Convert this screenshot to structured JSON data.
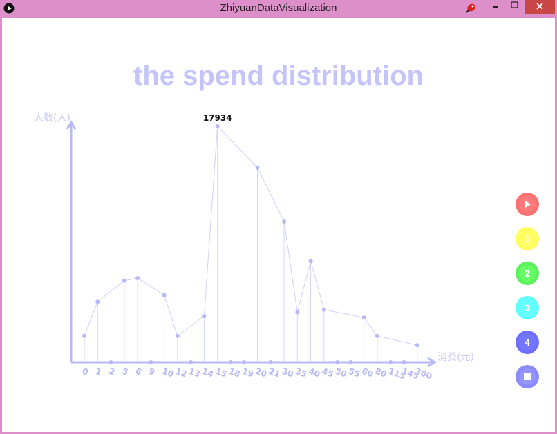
{
  "window": {
    "title": "ZhiyuanDataVisualization",
    "frame_color": "#dc8fc8",
    "close_color": "#c84646"
  },
  "chart_data": {
    "type": "line",
    "title": "the spend distribution",
    "xlabel": "消费(元)",
    "ylabel": "人数(人)",
    "categories": [
      "0",
      "1",
      "2",
      "5",
      "6",
      "9",
      "10",
      "12",
      "13",
      "14",
      "15",
      "18",
      "19",
      "20",
      "21",
      "30",
      "35",
      "40",
      "45",
      "50",
      "55",
      "60",
      "80",
      "115",
      "145",
      "300"
    ],
    "values": [
      2000,
      4600,
      0,
      6200,
      6400,
      0,
      5100,
      2000,
      0,
      3500,
      17934,
      0,
      0,
      14800,
      0,
      10700,
      3800,
      7700,
      4000,
      0,
      0,
      3400,
      2000,
      0,
      0,
      1300
    ],
    "ylim": [
      0,
      17934
    ],
    "annotation": "17934",
    "color": "#b8b8f4",
    "grid": false
  },
  "side_buttons": [
    {
      "name": "play-button",
      "icon": "play-icon",
      "label": "",
      "color": "#ff5a5a"
    },
    {
      "name": "button-1",
      "icon": "",
      "label": "1",
      "color": "#ffff44"
    },
    {
      "name": "button-2",
      "icon": "",
      "label": "2",
      "color": "#44ee44"
    },
    {
      "name": "button-3",
      "icon": "",
      "label": "3",
      "color": "#44ffff"
    },
    {
      "name": "button-4",
      "icon": "",
      "label": "4",
      "color": "#5555ff"
    },
    {
      "name": "stop-button",
      "icon": "stop-icon",
      "label": "",
      "color": "#7777ff"
    }
  ]
}
